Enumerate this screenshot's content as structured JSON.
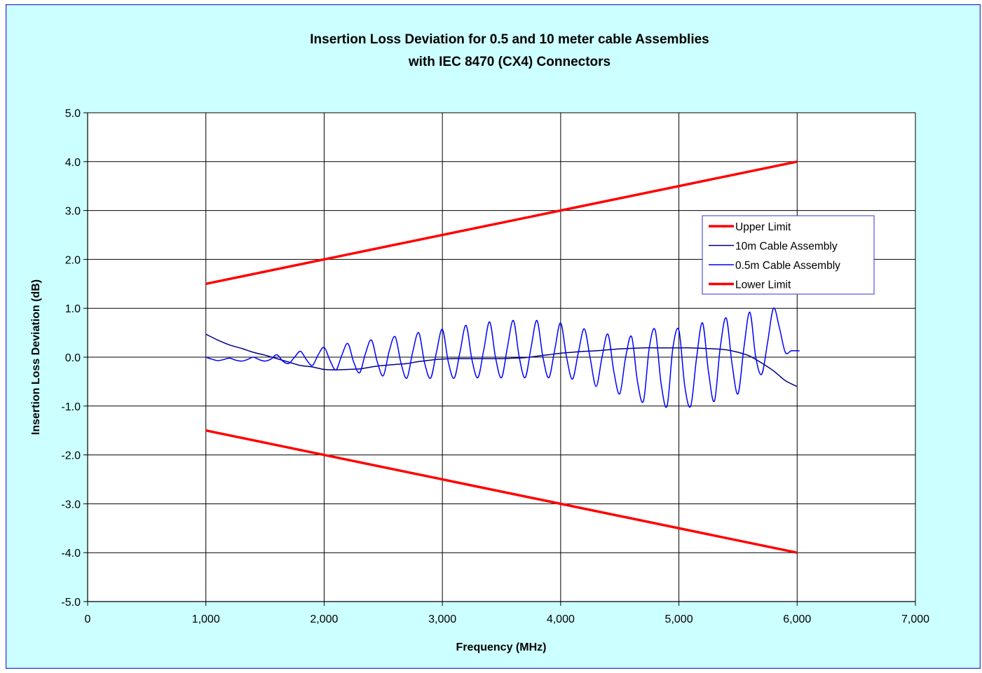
{
  "chart_data": {
    "type": "line",
    "title": [
      "Insertion Loss Deviation for 0.5 and 10 meter cable Assemblies",
      "with IEC 8470 (CX4) Connectors"
    ],
    "xlabel": "Frequency (MHz)",
    "ylabel": "Insertion Loss Deviation (dB)",
    "xlim": [
      0,
      7000
    ],
    "ylim": [
      -5,
      5
    ],
    "xticks": [
      0,
      1000,
      2000,
      3000,
      4000,
      5000,
      6000,
      7000
    ],
    "xtick_labels": [
      "0",
      "1,000",
      "2,000",
      "3,000",
      "4,000",
      "5,000",
      "6,000",
      "7,000"
    ],
    "yticks": [
      5,
      4,
      3,
      2,
      1,
      0,
      -1,
      -2,
      -3,
      -4,
      -5
    ],
    "ytick_labels": [
      "5.0",
      "4.0",
      "3.0",
      "2.0",
      "1.0",
      "0.0",
      "-1.0",
      "-2.0",
      "-3.0",
      "-4.0",
      "-5.0"
    ],
    "grid": true,
    "legend_position": "right",
    "colors": {
      "background": "#ccffff",
      "plot_area": "#ffffff",
      "frame": "#3333cc",
      "limit": "#ff0000",
      "cable_10m": "#000080",
      "cable_05m": "#0000ff"
    },
    "series": [
      {
        "name": "Upper Limit",
        "color": "#ff0000",
        "x": [
          1000,
          6000
        ],
        "y": [
          1.5,
          4.0
        ]
      },
      {
        "name": "10m Cable Assembly",
        "color": "#000080",
        "x": [
          1000,
          1100,
          1200,
          1300,
          1400,
          1500,
          1600,
          1700,
          1800,
          1900,
          2000,
          2100,
          2200,
          2300,
          2400,
          2500,
          2600,
          2700,
          2800,
          2900,
          3000,
          3100,
          3200,
          3300,
          3400,
          3500,
          3600,
          3700,
          3800,
          3900,
          4000,
          4100,
          4200,
          4300,
          4400,
          4500,
          4600,
          4700,
          4800,
          4900,
          5000,
          5100,
          5200,
          5300,
          5400,
          5500,
          5600,
          5700,
          5800,
          5900,
          6000
        ],
        "y": [
          0.47,
          0.35,
          0.25,
          0.18,
          0.1,
          0.04,
          -0.03,
          -0.1,
          -0.17,
          -0.2,
          -0.25,
          -0.26,
          -0.25,
          -0.24,
          -0.2,
          -0.17,
          -0.15,
          -0.13,
          -0.09,
          -0.06,
          -0.04,
          -0.03,
          -0.03,
          -0.03,
          -0.03,
          -0.03,
          -0.02,
          -0.01,
          0.02,
          0.05,
          0.08,
          0.1,
          0.12,
          0.13,
          0.15,
          0.17,
          0.18,
          0.19,
          0.19,
          0.19,
          0.19,
          0.19,
          0.18,
          0.17,
          0.15,
          0.1,
          0.02,
          -0.12,
          -0.28,
          -0.48,
          -0.6
        ]
      },
      {
        "name": "0.5m Cable Assembly",
        "color": "#0000ff",
        "x": [
          1000,
          1050,
          1100,
          1150,
          1200,
          1250,
          1300,
          1350,
          1400,
          1450,
          1500,
          1550,
          1600,
          1650,
          1700,
          1750,
          1800,
          1850,
          1900,
          1950,
          2000,
          2050,
          2100,
          2150,
          2200,
          2250,
          2300,
          2350,
          2400,
          2450,
          2500,
          2550,
          2600,
          2650,
          2700,
          2750,
          2800,
          2850,
          2900,
          2950,
          3000,
          3050,
          3100,
          3150,
          3200,
          3250,
          3300,
          3350,
          3400,
          3450,
          3500,
          3550,
          3600,
          3650,
          3700,
          3750,
          3800,
          3850,
          3900,
          3950,
          4000,
          4050,
          4100,
          4150,
          4200,
          4250,
          4300,
          4350,
          4400,
          4450,
          4500,
          4550,
          4600,
          4650,
          4700,
          4750,
          4800,
          4850,
          4900,
          4950,
          5000,
          5050,
          5100,
          5150,
          5200,
          5250,
          5300,
          5350,
          5400,
          5450,
          5500,
          5550,
          5600,
          5650,
          5700,
          5750,
          5800,
          5850,
          5900,
          5950,
          6000,
          6020
        ],
        "y": [
          0.0,
          -0.04,
          -0.07,
          -0.05,
          -0.02,
          -0.06,
          -0.08,
          -0.05,
          0.0,
          -0.05,
          -0.08,
          -0.04,
          0.05,
          -0.08,
          -0.13,
          0.0,
          0.12,
          -0.05,
          -0.17,
          0.05,
          0.2,
          -0.07,
          -0.26,
          0.04,
          0.28,
          -0.1,
          -0.32,
          0.08,
          0.35,
          -0.1,
          -0.38,
          0.12,
          0.42,
          -0.12,
          -0.43,
          0.12,
          0.5,
          -0.12,
          -0.43,
          0.1,
          0.57,
          -0.1,
          -0.43,
          0.12,
          0.65,
          -0.05,
          -0.42,
          0.15,
          0.72,
          -0.02,
          -0.42,
          0.2,
          0.75,
          0.0,
          -0.42,
          0.2,
          0.75,
          0.0,
          -0.42,
          0.15,
          0.7,
          0.0,
          -0.45,
          0.1,
          0.58,
          -0.02,
          -0.6,
          0.0,
          0.47,
          -0.3,
          -0.75,
          0.0,
          0.42,
          -0.5,
          -0.9,
          0.2,
          0.55,
          -0.55,
          -1.0,
          0.2,
          0.55,
          -0.6,
          -1.0,
          0.0,
          0.7,
          -0.3,
          -0.9,
          0.2,
          0.8,
          -0.15,
          -0.75,
          0.2,
          0.92,
          0.0,
          -0.35,
          0.3,
          1.0,
          0.6,
          0.1,
          0.13,
          0.13,
          0.13
        ]
      },
      {
        "name": "Lower Limit",
        "color": "#ff0000",
        "x": [
          1000,
          6000
        ],
        "y": [
          -1.5,
          -4.0
        ]
      }
    ]
  }
}
